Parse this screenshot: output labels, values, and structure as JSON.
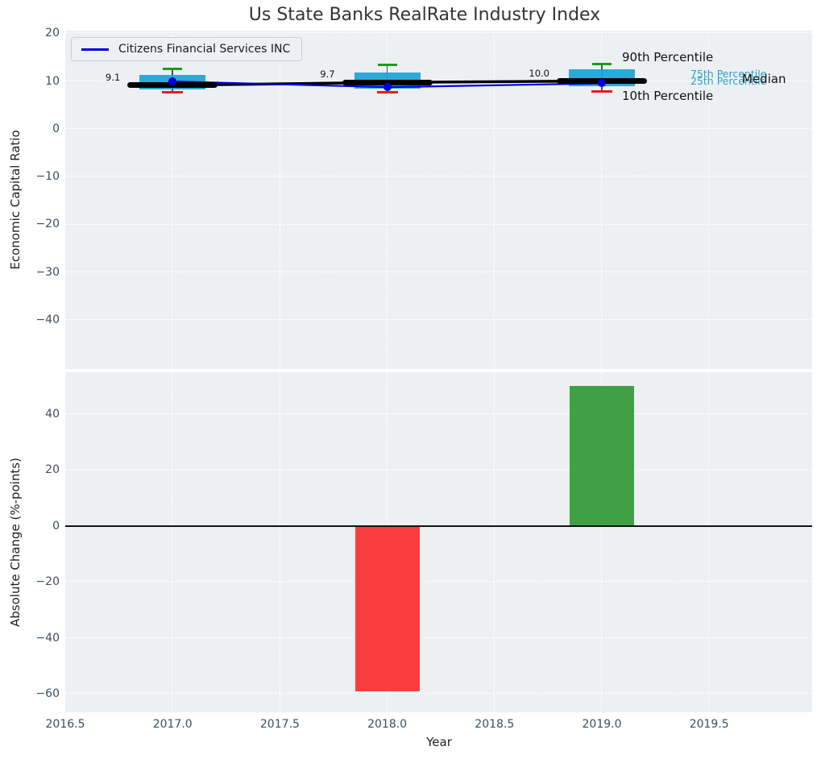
{
  "chart_data": [
    {
      "type": "boxplot",
      "title": "Us State Banks RealRate Industry Index",
      "xlabel": "Year",
      "ylabel": "Economic Capital Ratio",
      "x": [
        2017,
        2018,
        2019
      ],
      "series": [
        {
          "name": "Median",
          "values": [
            9.1,
            9.7,
            10.0
          ]
        },
        {
          "name": "90th Percentile",
          "values": [
            12.5,
            13.4,
            13.5
          ]
        },
        {
          "name": "75th Percentile",
          "values": [
            11.2,
            11.7,
            12.4
          ]
        },
        {
          "name": "25th Percentile",
          "values": [
            8.2,
            8.4,
            8.9
          ]
        },
        {
          "name": "10th Percentile",
          "values": [
            7.7,
            7.7,
            7.8
          ]
        },
        {
          "name": "Citizens Financial Services INC",
          "values": [
            9.9,
            8.7,
            9.5
          ]
        }
      ],
      "annotations": [
        "9.1",
        "9.7",
        "10.0"
      ],
      "legend": [
        "Citizens Financial Services INC"
      ],
      "legend_position": "upper left",
      "point_labels": {
        "p90": "90th Percentile",
        "p75": "75th Percentile",
        "median": "Median",
        "p25": "25th Percentile",
        "p10": "10th Percentile"
      },
      "ytick_values": [
        20,
        10,
        0,
        -10,
        -20,
        -30,
        -40
      ],
      "ytick_labels": [
        "20",
        "10",
        "0",
        "−10",
        "−20",
        "−30",
        "−40"
      ],
      "ylim": [
        -50.3,
        20.5
      ],
      "grid": true,
      "colors": {
        "box": "#1fa3d4",
        "whisker": "#4d4d4d",
        "cap_top": "#1d9b1d",
        "cap_bottom": "#e51d1d",
        "median_line": "#000000",
        "company_line": "#0000e0",
        "plot_bg": "#edf0f2",
        "grid": "#ffffff",
        "tick_text": "#3d4e61",
        "cyan_label": "#2aa0cc"
      }
    },
    {
      "type": "bar",
      "xlabel": "Year",
      "ylabel": "Absolute Change (%-points)",
      "x": [
        2018,
        2019
      ],
      "values": [
        -59,
        50
      ],
      "bar_colors": [
        "#fa3d3d",
        "#3fa144"
      ],
      "ytick_values": [
        40,
        20,
        0,
        -20,
        -40,
        -60
      ],
      "ytick_labels": [
        "40",
        "20",
        "0",
        "−20",
        "−40",
        "−60"
      ],
      "ylim": [
        -66.5,
        55
      ],
      "grid": true
    }
  ],
  "x_axis": {
    "label": "Year",
    "tick_values": [
      2016.5,
      2017.0,
      2017.5,
      2018.0,
      2018.5,
      2019.0,
      2019.5
    ],
    "tick_labels": [
      "2016.5",
      "2017.0",
      "2017.5",
      "2018.0",
      "2018.5",
      "2019.0",
      "2019.5"
    ],
    "xlim": [
      2016.5,
      2019.98
    ]
  }
}
